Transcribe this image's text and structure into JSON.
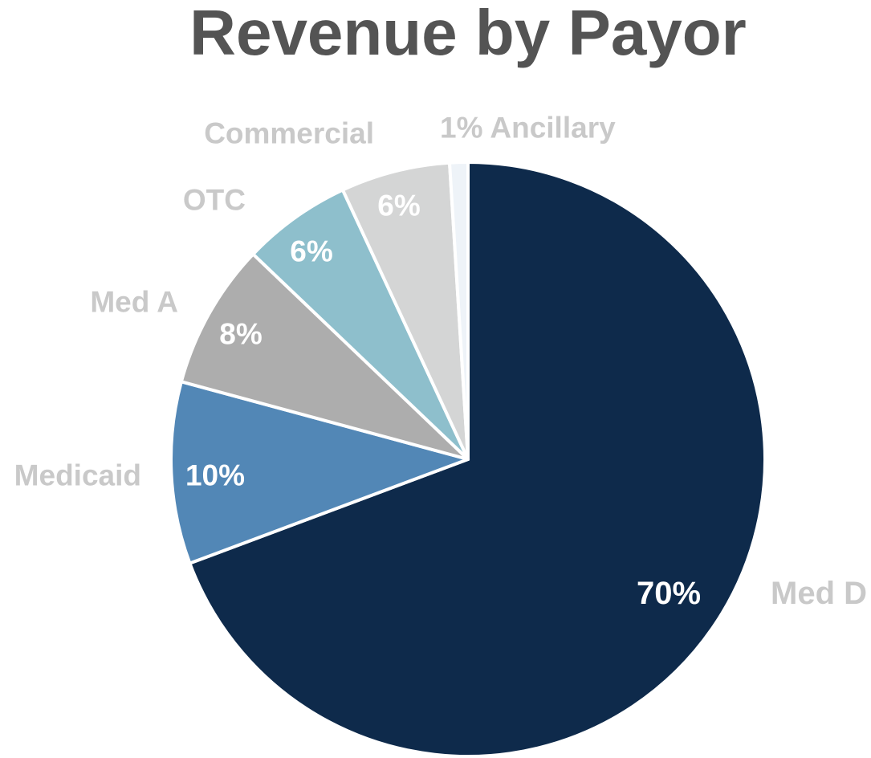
{
  "chart_data": {
    "type": "pie",
    "title": "Revenue by Payor",
    "slices": [
      {
        "name": "Med D",
        "value": 70,
        "label": "70%",
        "color": "#0e2a4b"
      },
      {
        "name": "Medicaid",
        "value": 10,
        "label": "10%",
        "color": "#5287b6"
      },
      {
        "name": "Med A",
        "value": 8,
        "label": "8%",
        "color": "#adadad"
      },
      {
        "name": "OTC",
        "value": 6,
        "label": "6%",
        "color": "#8ebfcc"
      },
      {
        "name": "Commercial",
        "value": 6,
        "label": "6%",
        "color": "#d4d5d5"
      },
      {
        "name": "Ancillary",
        "value": 1,
        "label": "1% Ancillary",
        "color": "#eef3f8"
      }
    ],
    "start_angle": "12 o'clock",
    "direction": "clockwise",
    "legend": "none"
  }
}
